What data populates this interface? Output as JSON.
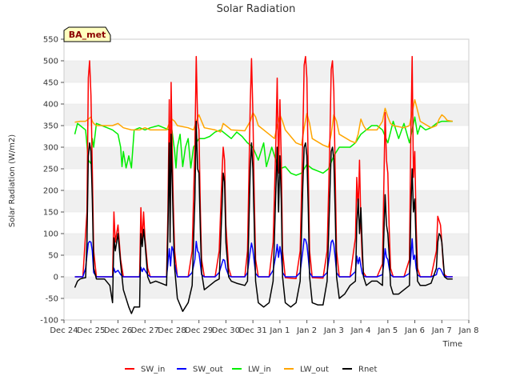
{
  "chart_data": {
    "type": "line",
    "title": "Solar Radiation",
    "xlabel": "Time",
    "ylabel": "Solar Radiation (W/m2)",
    "site_label": "BA_met",
    "ylim": [
      -100,
      550
    ],
    "yticks": [
      -100,
      -50,
      0,
      50,
      100,
      150,
      200,
      250,
      300,
      350,
      400,
      450,
      500,
      550
    ],
    "xlim": [
      0,
      15
    ],
    "xticks": [
      {
        "x": 0,
        "label": "Dec 24"
      },
      {
        "x": 1,
        "label": "Dec 25"
      },
      {
        "x": 2,
        "label": "Dec 26"
      },
      {
        "x": 3,
        "label": "Dec 27"
      },
      {
        "x": 4,
        "label": "Dec 28"
      },
      {
        "x": 5,
        "label": "Dec 29"
      },
      {
        "x": 6,
        "label": "Dec 30"
      },
      {
        "x": 7,
        "label": "Dec 31"
      },
      {
        "x": 8,
        "label": "Jan 1"
      },
      {
        "x": 9,
        "label": "Jan 2"
      },
      {
        "x": 10,
        "label": "Jan 3"
      },
      {
        "x": 11,
        "label": "Jan 4"
      },
      {
        "x": 12,
        "label": "Jan 5"
      },
      {
        "x": 13,
        "label": "Jan 6"
      },
      {
        "x": 14,
        "label": "Jan 7"
      },
      {
        "x": 15,
        "label": "Jan 8"
      }
    ],
    "legend_position": "bottom-center",
    "grid": "horizontal-bands",
    "series": [
      {
        "name": "SW_in",
        "color": "#ff0000",
        "x": [
          0.4,
          0.7,
          0.85,
          0.9,
          0.95,
          1.0,
          1.05,
          1.1,
          1.2,
          1.5,
          1.8,
          1.85,
          1.9,
          2.0,
          2.1,
          2.2,
          2.5,
          2.8,
          2.85,
          2.9,
          2.95,
          3.0,
          3.1,
          3.2,
          3.6,
          3.8,
          3.85,
          3.9,
          3.93,
          3.97,
          4.0,
          4.05,
          4.1,
          4.2,
          4.6,
          4.75,
          4.85,
          4.9,
          4.95,
          5.0,
          5.05,
          5.1,
          5.2,
          5.6,
          5.75,
          5.85,
          5.9,
          5.95,
          6.0,
          6.1,
          6.2,
          6.7,
          6.8,
          6.9,
          6.95,
          7.0,
          7.05,
          7.1,
          7.2,
          7.6,
          7.75,
          7.85,
          7.9,
          7.95,
          8.0,
          8.05,
          8.1,
          8.2,
          8.6,
          8.75,
          8.85,
          8.9,
          8.95,
          9.0,
          9.05,
          9.1,
          9.2,
          9.6,
          9.75,
          9.85,
          9.9,
          9.95,
          10.0,
          10.05,
          10.1,
          10.2,
          10.6,
          10.8,
          10.85,
          10.9,
          10.95,
          11.0,
          11.05,
          11.1,
          11.2,
          11.6,
          11.8,
          11.85,
          11.9,
          11.95,
          12.0,
          12.05,
          12.1,
          12.2,
          12.6,
          12.8,
          12.85,
          12.9,
          12.95,
          13.0,
          13.05,
          13.1,
          13.2,
          13.6,
          13.8,
          13.85,
          13.9,
          13.95,
          14.0,
          14.05,
          14.1,
          14.2,
          14.4
        ],
        "values": [
          0,
          0,
          150,
          460,
          500,
          420,
          250,
          60,
          0,
          0,
          0,
          150,
          80,
          120,
          40,
          0,
          0,
          0,
          160,
          80,
          150,
          90,
          20,
          0,
          0,
          0,
          150,
          410,
          120,
          450,
          330,
          170,
          60,
          0,
          0,
          60,
          300,
          510,
          360,
          340,
          160,
          40,
          0,
          0,
          60,
          230,
          300,
          270,
          120,
          20,
          0,
          0,
          60,
          400,
          505,
          380,
          190,
          40,
          0,
          0,
          80,
          310,
          460,
          240,
          410,
          270,
          60,
          -2,
          -4,
          60,
          320,
          490,
          510,
          460,
          250,
          60,
          -2,
          -3,
          60,
          310,
          480,
          500,
          430,
          240,
          60,
          0,
          0,
          90,
          230,
          150,
          270,
          120,
          40,
          10,
          0,
          0,
          30,
          200,
          380,
          270,
          240,
          110,
          20,
          0,
          0,
          40,
          320,
          510,
          230,
          290,
          120,
          20,
          0,
          0,
          60,
          140,
          130,
          120,
          80,
          30,
          5,
          0,
          0
        ]
      },
      {
        "name": "SW_out",
        "color": "#0000ff",
        "x": [
          0.4,
          0.7,
          0.8,
          0.85,
          0.9,
          0.95,
          1.0,
          1.05,
          1.1,
          1.2,
          1.5,
          1.8,
          1.85,
          1.9,
          2.0,
          2.1,
          2.2,
          2.5,
          2.8,
          2.85,
          2.9,
          2.95,
          3.0,
          3.1,
          3.2,
          3.6,
          3.8,
          3.85,
          3.9,
          3.95,
          4.0,
          4.05,
          4.1,
          4.2,
          4.6,
          4.75,
          4.85,
          4.9,
          4.95,
          5.0,
          5.05,
          5.1,
          5.2,
          5.6,
          5.75,
          5.85,
          5.9,
          5.95,
          6.0,
          6.1,
          6.2,
          6.7,
          6.8,
          6.9,
          6.95,
          7.0,
          7.05,
          7.1,
          7.2,
          7.6,
          7.75,
          7.85,
          7.9,
          7.95,
          8.0,
          8.05,
          8.1,
          8.2,
          8.6,
          8.75,
          8.85,
          8.9,
          8.95,
          9.0,
          9.05,
          9.1,
          9.2,
          9.6,
          9.75,
          9.85,
          9.9,
          9.95,
          10.0,
          10.05,
          10.1,
          10.2,
          10.6,
          10.8,
          10.85,
          10.9,
          10.95,
          11.0,
          11.05,
          11.1,
          11.2,
          11.6,
          11.8,
          11.85,
          11.9,
          11.95,
          12.0,
          12.05,
          12.1,
          12.2,
          12.6,
          12.8,
          12.85,
          12.9,
          12.95,
          13.0,
          13.05,
          13.1,
          13.2,
          13.6,
          13.8,
          13.85,
          13.9,
          13.95,
          14.0,
          14.05,
          14.1,
          14.2,
          14.4
        ],
        "values": [
          0,
          0,
          20,
          50,
          78,
          82,
          80,
          60,
          10,
          0,
          0,
          0,
          20,
          10,
          15,
          5,
          0,
          0,
          0,
          22,
          12,
          20,
          15,
          5,
          0,
          0,
          0,
          30,
          65,
          25,
          70,
          60,
          30,
          0,
          0,
          10,
          40,
          82,
          60,
          55,
          30,
          5,
          0,
          0,
          10,
          30,
          40,
          38,
          20,
          3,
          0,
          0,
          10,
          60,
          78,
          62,
          35,
          8,
          0,
          0,
          15,
          50,
          75,
          45,
          70,
          50,
          10,
          0,
          0,
          10,
          60,
          88,
          86,
          75,
          45,
          10,
          0,
          0,
          10,
          55,
          80,
          85,
          75,
          45,
          10,
          0,
          0,
          12,
          48,
          30,
          45,
          25,
          8,
          2,
          0,
          0,
          5,
          30,
          65,
          45,
          40,
          20,
          5,
          0,
          0,
          8,
          45,
          88,
          40,
          50,
          20,
          5,
          0,
          0,
          5,
          18,
          20,
          18,
          12,
          5,
          1,
          0,
          0
        ]
      },
      {
        "name": "LW_in",
        "color": "#00ee00",
        "x": [
          0.4,
          0.5,
          0.6,
          0.8,
          0.9,
          1.0,
          1.05,
          1.1,
          1.2,
          1.4,
          1.6,
          1.8,
          2.0,
          2.1,
          2.15,
          2.2,
          2.3,
          2.4,
          2.5,
          2.6,
          2.8,
          3.0,
          3.2,
          3.5,
          3.7,
          3.9,
          4.0,
          4.1,
          4.15,
          4.2,
          4.3,
          4.4,
          4.5,
          4.6,
          4.7,
          4.8,
          5.0,
          5.2,
          5.4,
          5.6,
          5.8,
          6.0,
          6.2,
          6.4,
          6.6,
          6.8,
          7.0,
          7.2,
          7.4,
          7.5,
          7.7,
          7.9,
          8.0,
          8.2,
          8.4,
          8.6,
          8.8,
          9.0,
          9.2,
          9.4,
          9.6,
          9.8,
          10.0,
          10.2,
          10.4,
          10.6,
          10.8,
          11.0,
          11.2,
          11.4,
          11.6,
          11.8,
          12.0,
          12.2,
          12.4,
          12.6,
          12.8,
          13.0,
          13.1,
          13.2,
          13.4,
          13.6,
          13.8,
          14.0,
          14.2,
          14.4
        ],
        "values": [
          330,
          355,
          350,
          340,
          270,
          262,
          320,
          300,
          355,
          350,
          345,
          340,
          330,
          300,
          255,
          290,
          252,
          280,
          252,
          340,
          345,
          340,
          345,
          350,
          345,
          340,
          340,
          290,
          252,
          300,
          330,
          255,
          300,
          320,
          252,
          300,
          320,
          320,
          325,
          335,
          340,
          330,
          320,
          335,
          325,
          310,
          300,
          270,
          310,
          255,
          300,
          260,
          250,
          255,
          240,
          235,
          240,
          260,
          250,
          245,
          240,
          250,
          280,
          300,
          300,
          300,
          310,
          330,
          340,
          350,
          350,
          340,
          310,
          360,
          320,
          355,
          310,
          370,
          330,
          350,
          340,
          345,
          355,
          360,
          360,
          360
        ]
      },
      {
        "name": "LW_out",
        "color": "#ffa500",
        "x": [
          0.4,
          0.6,
          0.8,
          0.9,
          1.0,
          1.05,
          1.1,
          1.2,
          1.5,
          1.8,
          2.0,
          2.2,
          2.5,
          2.8,
          3.0,
          3.2,
          3.6,
          3.8,
          3.9,
          4.0,
          4.1,
          4.2,
          4.6,
          4.8,
          4.9,
          5.0,
          5.1,
          5.2,
          5.6,
          5.8,
          5.9,
          6.0,
          6.1,
          6.2,
          6.7,
          6.9,
          7.0,
          7.1,
          7.2,
          7.6,
          7.8,
          7.9,
          8.0,
          8.1,
          8.2,
          8.6,
          8.8,
          8.9,
          9.0,
          9.1,
          9.2,
          9.6,
          9.8,
          9.9,
          10.0,
          10.1,
          10.2,
          10.6,
          10.8,
          10.9,
          11.0,
          11.1,
          11.2,
          11.6,
          11.8,
          11.9,
          12.0,
          12.1,
          12.2,
          12.6,
          12.8,
          12.9,
          13.0,
          13.1,
          13.2,
          13.6,
          13.8,
          13.9,
          14.0,
          14.1,
          14.2,
          14.4
        ],
        "values": [
          358,
          360,
          360,
          365,
          370,
          360,
          355,
          350,
          350,
          350,
          355,
          345,
          340,
          340,
          345,
          340,
          340,
          340,
          355,
          365,
          360,
          350,
          345,
          340,
          360,
          375,
          360,
          345,
          340,
          335,
          355,
          350,
          345,
          340,
          338,
          360,
          380,
          370,
          350,
          330,
          320,
          350,
          375,
          360,
          340,
          310,
          305,
          345,
          378,
          355,
          320,
          305,
          300,
          330,
          375,
          360,
          330,
          315,
          310,
          330,
          365,
          350,
          340,
          340,
          360,
          390,
          370,
          355,
          350,
          345,
          350,
          380,
          410,
          385,
          360,
          345,
          350,
          365,
          375,
          370,
          362,
          360
        ]
      },
      {
        "name": "Rnet",
        "color": "#000000",
        "x": [
          0.4,
          0.5,
          0.6,
          0.7,
          0.8,
          0.85,
          0.9,
          0.95,
          1.0,
          1.05,
          1.1,
          1.2,
          1.5,
          1.7,
          1.8,
          1.85,
          1.9,
          2.0,
          2.1,
          2.2,
          2.4,
          2.5,
          2.6,
          2.8,
          2.85,
          2.9,
          2.95,
          3.0,
          3.1,
          3.2,
          3.4,
          3.6,
          3.8,
          3.85,
          3.9,
          3.93,
          3.97,
          4.0,
          4.05,
          4.1,
          4.2,
          4.4,
          4.6,
          4.75,
          4.85,
          4.9,
          4.95,
          5.0,
          5.05,
          5.1,
          5.2,
          5.4,
          5.6,
          5.75,
          5.85,
          5.9,
          5.95,
          6.0,
          6.1,
          6.2,
          6.4,
          6.7,
          6.8,
          6.9,
          6.95,
          7.0,
          7.05,
          7.1,
          7.2,
          7.4,
          7.6,
          7.75,
          7.85,
          7.9,
          7.95,
          8.0,
          8.05,
          8.1,
          8.2,
          8.4,
          8.6,
          8.75,
          8.85,
          8.9,
          8.95,
          9.0,
          9.05,
          9.1,
          9.2,
          9.4,
          9.6,
          9.75,
          9.85,
          9.9,
          9.95,
          10.0,
          10.05,
          10.1,
          10.2,
          10.4,
          10.6,
          10.8,
          10.85,
          10.9,
          10.95,
          11.0,
          11.05,
          11.1,
          11.2,
          11.4,
          11.6,
          11.8,
          11.85,
          11.9,
          11.95,
          12.0,
          12.05,
          12.1,
          12.2,
          12.4,
          12.6,
          12.8,
          12.85,
          12.9,
          12.95,
          13.0,
          13.05,
          13.1,
          13.2,
          13.4,
          13.6,
          13.8,
          13.85,
          13.9,
          13.95,
          14.0,
          14.05,
          14.1,
          14.2,
          14.4
        ],
        "values": [
          -25,
          -10,
          -5,
          -3,
          -2,
          80,
          280,
          310,
          290,
          180,
          20,
          -5,
          -5,
          -20,
          -60,
          90,
          60,
          100,
          30,
          -30,
          -70,
          -85,
          -70,
          -70,
          100,
          70,
          110,
          80,
          0,
          -15,
          -10,
          -15,
          -20,
          100,
          310,
          80,
          330,
          250,
          120,
          20,
          -50,
          -80,
          -60,
          -20,
          180,
          360,
          250,
          240,
          110,
          10,
          -30,
          -20,
          -10,
          -5,
          150,
          240,
          220,
          80,
          0,
          -10,
          -15,
          -20,
          -10,
          250,
          310,
          250,
          120,
          -10,
          -60,
          -70,
          -60,
          -10,
          200,
          300,
          150,
          280,
          180,
          0,
          -60,
          -70,
          -60,
          -10,
          210,
          300,
          310,
          280,
          160,
          0,
          -60,
          -65,
          -65,
          -10,
          190,
          290,
          300,
          270,
          150,
          0,
          -50,
          -40,
          -20,
          -10,
          120,
          180,
          100,
          160,
          70,
          0,
          -20,
          -10,
          -10,
          -20,
          90,
          190,
          120,
          100,
          50,
          -20,
          -40,
          -40,
          -30,
          -20,
          150,
          250,
          150,
          180,
          70,
          -10,
          -20,
          -20,
          -15,
          20,
          80,
          100,
          95,
          80,
          40,
          0,
          -5,
          -5
        ]
      }
    ]
  }
}
